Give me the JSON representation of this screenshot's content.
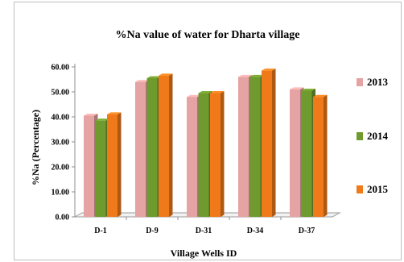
{
  "chart_data": {
    "type": "bar",
    "title": "%Na value of  water for Dharta village",
    "xlabel": "Village Wells ID",
    "ylabel": "%Na  (Percentage)",
    "categories": [
      "D-1",
      "D-9",
      "D-31",
      "D-34",
      "D-37"
    ],
    "series": [
      {
        "name": "2013",
        "color": "#e6a3a3",
        "values": [
          40.5,
          54.0,
          48.0,
          56.0,
          51.0
        ]
      },
      {
        "name": "2014",
        "color": "#6f9a2e",
        "values": [
          38.5,
          55.5,
          49.5,
          56.0,
          50.5
        ]
      },
      {
        "name": "2015",
        "color": "#f07a1a",
        "values": [
          41.0,
          56.5,
          49.5,
          58.5,
          48.0
        ]
      }
    ],
    "y_ticks": [
      "0.00",
      "10.00",
      "20.00",
      "30.00",
      "40.00",
      "50.00",
      "60.00"
    ],
    "ylim": [
      0,
      60
    ],
    "grid": false,
    "legend_position": "right"
  }
}
